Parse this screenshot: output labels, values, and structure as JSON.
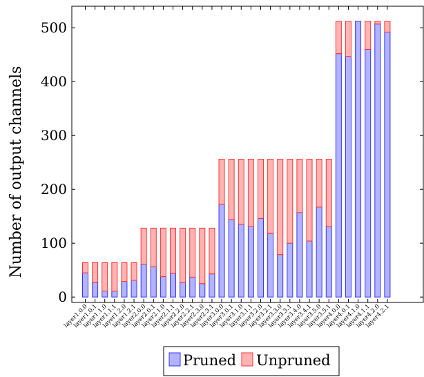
{
  "chart_data": {
    "type": "bar",
    "stacked": true,
    "title": "",
    "xlabel": "",
    "ylabel": "Number of output channels",
    "ylim": [
      -10,
      540
    ],
    "yticks": [
      0,
      100,
      200,
      300,
      400,
      500
    ],
    "grid": false,
    "legend_position": "bottom-center",
    "categories": [
      "layer1.0.0",
      "layer1.0.1",
      "layer1.1.0",
      "layer1.1.1",
      "layer1.2.0",
      "layer1.2.1",
      "layer2.0.0",
      "layer2.0.1",
      "layer2.1.0",
      "layer2.1.1",
      "layer2.2.0",
      "layer2.2.1",
      "layer2.3.0",
      "layer2.3.1",
      "layer3.0.0",
      "layer3.0.1",
      "layer3.1.0",
      "layer3.1.1",
      "layer3.2.0",
      "layer3.2.1",
      "layer3.3.0",
      "layer3.3.1",
      "layer3.4.0",
      "layer3.4.1",
      "layer3.5.0",
      "layer3.5.1",
      "layer4.0.0",
      "layer4.0.1",
      "layer4.1.0",
      "layer4.1.1",
      "layer4.2.0",
      "layer4.2.1"
    ],
    "series": [
      {
        "name": "Pruned",
        "color": "#b3b3ff",
        "edge": "#3333ff",
        "values": [
          45,
          27,
          11,
          11,
          29,
          31,
          61,
          56,
          38,
          44,
          27,
          37,
          25,
          43,
          172,
          144,
          135,
          131,
          146,
          118,
          79,
          100,
          157,
          104,
          167,
          131,
          452,
          447,
          512,
          460,
          507,
          492
        ]
      },
      {
        "name": "Unpruned",
        "color": "#ffb3b3",
        "edge": "#ff3333",
        "values": [
          19,
          37,
          53,
          53,
          35,
          33,
          67,
          72,
          90,
          84,
          101,
          91,
          103,
          85,
          84,
          112,
          121,
          125,
          110,
          138,
          177,
          156,
          99,
          152,
          89,
          125,
          60,
          65,
          0,
          52,
          5,
          20
        ]
      }
    ]
  }
}
